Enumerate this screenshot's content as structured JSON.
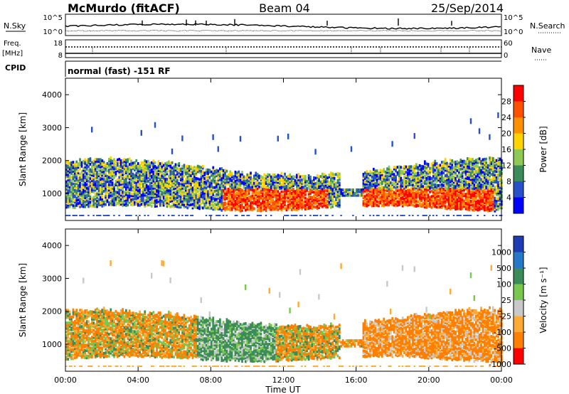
{
  "header": {
    "station": "McMurdo (fitACF)",
    "beam": "Beam 04",
    "date": "25/Sep/2014"
  },
  "status_panels": {
    "nsky_label": "N.Sky",
    "nsearch_label": "N.Search",
    "noise_left_ticks": [
      "10^5",
      "10^0"
    ],
    "noise_right_ticks": [
      "10^5",
      "10^0"
    ],
    "freq_label_1": "Freq.",
    "freq_label_2": "[MHz]",
    "freq_ticks": [
      "18",
      "8"
    ],
    "nave_label": "Nave",
    "nave_ticks": [
      "60",
      "0"
    ],
    "cpid_label": "CPID",
    "cpid_value": "normal (fast) -151 RF"
  },
  "chart_data": [
    {
      "type": "heatmap",
      "parameter": "Power",
      "ylabel": "Slant Range [km]",
      "yticks": [
        1000,
        2000,
        3000,
        4000
      ],
      "ylim": [
        180,
        4500
      ],
      "xlim": [
        0,
        24
      ],
      "colorbar": {
        "label": "Power [dB]",
        "ticks": [
          "28",
          "24",
          "20",
          "16",
          "12",
          "8",
          "4"
        ],
        "colors": [
          "#ff0000",
          "#ff5000",
          "#ff9000",
          "#ffd200",
          "#8ec855",
          "#3c8c5a",
          "#2850c8",
          "#0000ff"
        ]
      },
      "scatter_band_km": [
        500,
        1900
      ]
    },
    {
      "type": "heatmap",
      "parameter": "Velocity",
      "ylabel": "Slant Range [km]",
      "yticks": [
        1000,
        2000,
        3000,
        4000
      ],
      "ylim": [
        180,
        4500
      ],
      "xlim": [
        0,
        24
      ],
      "xlabel": "Time UT",
      "xticks": [
        "00:00",
        "04:00",
        "08:00",
        "12:00",
        "16:00",
        "20:00",
        "00:00"
      ],
      "colorbar": {
        "label": "Velocity [m s⁻¹]",
        "ticks": [
          "1000",
          "500",
          "100",
          "25",
          "-25",
          "-100",
          "-500",
          "-1000"
        ],
        "colors": [
          "#1e3cb4",
          "#2878c8",
          "#3c8c5a",
          "#78c850",
          "#c8c8c8",
          "#ffaa32",
          "#ff7f00",
          "#ff0000"
        ]
      },
      "scatter_band_km": [
        500,
        1900
      ]
    }
  ]
}
